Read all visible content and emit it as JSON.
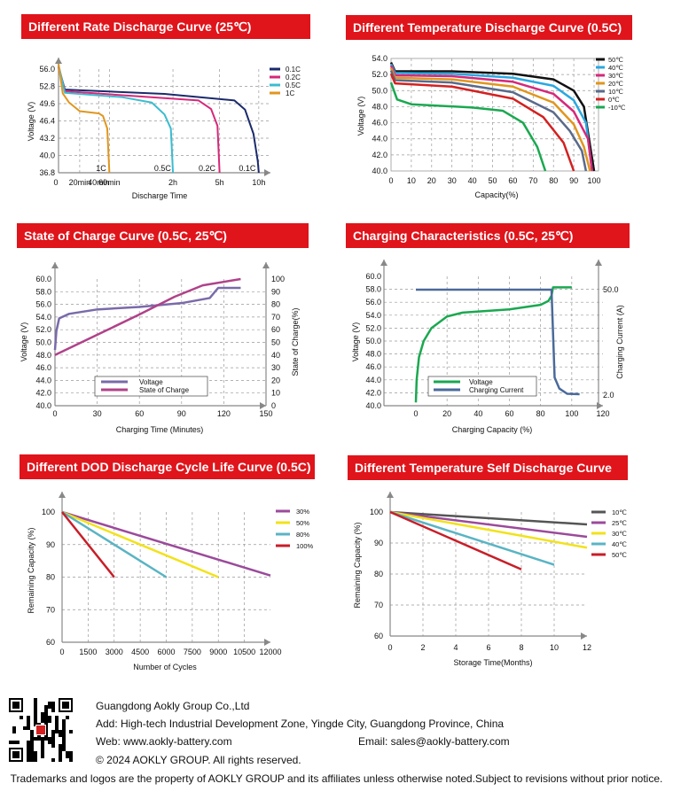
{
  "titles": {
    "c1": "Different Rate Discharge Curve (25℃)",
    "c2": "Different Temperature Discharge Curve (0.5C)",
    "c3": "State of Charge Curve (0.5C, 25℃)",
    "c4": "Charging Characteristics (0.5C, 25℃)",
    "c5": "Different DOD Discharge Cycle Life Curve (0.5C)",
    "c6": "Different Temperature Self Discharge Curve"
  },
  "chart_data": [
    {
      "id": "rate",
      "type": "line",
      "ylabel": "Voltage (V)",
      "xlabel": "Discharge Time",
      "yticks": [
        "56.0",
        "52.8",
        "49.6",
        "46.4",
        "43.2",
        "40.0",
        "36.8"
      ],
      "xticks": [
        "0",
        "20min",
        "40min",
        "60min",
        "2h",
        "5h",
        "10h"
      ],
      "legend": [
        "0.1C",
        "0.2C",
        "0.5C",
        "1C"
      ],
      "curve_labels": [
        "1C",
        "0.5C",
        "0.2C",
        "0.1C"
      ],
      "colors": [
        "#1a2a6c",
        "#d6287a",
        "#3bbcd0",
        "#e0961e"
      ],
      "series": [
        {
          "name": "0.1C",
          "points": [
            [
              0,
              56.4
            ],
            [
              3,
              52.2
            ],
            [
              50,
              51.4
            ],
            [
              83,
              50.2
            ],
            [
              88,
              48.5
            ],
            [
              92,
              44
            ],
            [
              94,
              39
            ],
            [
              94.5,
              36.8
            ]
          ]
        },
        {
          "name": "0.2C",
          "points": [
            [
              0,
              56.6
            ],
            [
              3,
              51.9
            ],
            [
              40,
              50.9
            ],
            [
              66,
              50.2
            ],
            [
              72,
              48.6
            ],
            [
              75,
              45.5
            ],
            [
              76,
              36.8
            ]
          ]
        },
        {
          "name": "0.5C",
          "points": [
            [
              0,
              56.8
            ],
            [
              3,
              51.6
            ],
            [
              30,
              50.8
            ],
            [
              44,
              49.8
            ],
            [
              50,
              47.6
            ],
            [
              53,
              45
            ],
            [
              54,
              36.8
            ]
          ]
        },
        {
          "name": "1C",
          "points": [
            [
              0,
              57
            ],
            [
              2,
              51.5
            ],
            [
              5,
              49.8
            ],
            [
              10,
              48.2
            ],
            [
              19,
              47.8
            ],
            [
              21,
              47.3
            ],
            [
              23,
              45
            ],
            [
              24,
              36.8
            ]
          ]
        }
      ]
    },
    {
      "id": "temp",
      "type": "line",
      "ylabel": "Voltage (V)",
      "xlabel": "Capacity(%)",
      "yticks": [
        "54.0",
        "52.0",
        "50.0",
        "48.0",
        "46.0",
        "44.0",
        "42.0",
        "40.0"
      ],
      "xticks": [
        "0",
        "10",
        "20",
        "30",
        "40",
        "50",
        "60",
        "70",
        "80",
        "90",
        "100"
      ],
      "legend": [
        "50℃",
        "40℃",
        "30℃",
        "20℃",
        "10℃",
        "0℃",
        "-10℃"
      ],
      "colors": [
        "#111111",
        "#2aa8e0",
        "#d6287a",
        "#e0961e",
        "#5a6a8a",
        "#d42020",
        "#1aa850"
      ],
      "series": [
        {
          "name": "50℃",
          "points": [
            [
              0,
              53.5
            ],
            [
              2,
              52.4
            ],
            [
              30,
              52.4
            ],
            [
              60,
              52.1
            ],
            [
              80,
              51.4
            ],
            [
              90,
              50
            ],
            [
              95,
              48
            ],
            [
              100,
              40
            ]
          ]
        },
        {
          "name": "40℃",
          "points": [
            [
              0,
              53.3
            ],
            [
              2,
              52.2
            ],
            [
              30,
              52.1
            ],
            [
              60,
              51.6
            ],
            [
              80,
              50.6
            ],
            [
              90,
              48.8
            ],
            [
              96,
              46
            ],
            [
              99,
              40
            ]
          ]
        },
        {
          "name": "30℃",
          "points": [
            [
              0,
              53.1
            ],
            [
              2,
              51.9
            ],
            [
              30,
              51.8
            ],
            [
              60,
              51.1
            ],
            [
              80,
              49.6
            ],
            [
              90,
              47.4
            ],
            [
              97,
              44
            ],
            [
              99,
              40
            ]
          ]
        },
        {
          "name": "20℃",
          "points": [
            [
              0,
              52.8
            ],
            [
              2,
              51.6
            ],
            [
              30,
              51.4
            ],
            [
              60,
              50.5
            ],
            [
              80,
              48.5
            ],
            [
              90,
              45.8
            ],
            [
              95,
              43
            ],
            [
              98,
              40
            ]
          ]
        },
        {
          "name": "10℃",
          "points": [
            [
              0,
              52.5
            ],
            [
              2,
              51.3
            ],
            [
              30,
              51
            ],
            [
              60,
              49.8
            ],
            [
              80,
              47.3
            ],
            [
              88,
              45
            ],
            [
              94,
              42.5
            ],
            [
              96,
              40
            ]
          ]
        },
        {
          "name": "0℃",
          "points": [
            [
              0,
              52.1
            ],
            [
              2,
              50.9
            ],
            [
              30,
              50.5
            ],
            [
              60,
              49
            ],
            [
              75,
              46.7
            ],
            [
              85,
              43.5
            ],
            [
              90,
              40
            ]
          ]
        },
        {
          "name": "-10℃",
          "points": [
            [
              0,
              51
            ],
            [
              3,
              48.9
            ],
            [
              10,
              48.3
            ],
            [
              40,
              47.9
            ],
            [
              55,
              47.5
            ],
            [
              65,
              46
            ],
            [
              72,
              43
            ],
            [
              76,
              40
            ]
          ]
        }
      ]
    },
    {
      "id": "soc",
      "type": "line",
      "ylabel": "Voltage (V)",
      "y2label": "State of Charge(%)",
      "xlabel": "Charging Time (Minutes)",
      "yticks": [
        "60.0",
        "58.0",
        "56.0",
        "54.0",
        "52.0",
        "50.0",
        "48.0",
        "46.0",
        "44.0",
        "42.0",
        "40.0"
      ],
      "y2ticks": [
        "100",
        "90",
        "80",
        "70",
        "60",
        "50",
        "40",
        "30",
        "20",
        "10",
        "0"
      ],
      "xticks": [
        "0",
        "30",
        "60",
        "90",
        "120",
        "150"
      ],
      "legend": [
        "Voltage",
        "State of Charge"
      ],
      "colors": [
        "#7a6aaa",
        "#b0428a"
      ],
      "series": [
        {
          "name": "Voltage",
          "axis": "left",
          "points": [
            [
              0,
              48.8
            ],
            [
              1,
              51.8
            ],
            [
              3,
              53.8
            ],
            [
              10,
              54.5
            ],
            [
              30,
              55.2
            ],
            [
              60,
              55.6
            ],
            [
              90,
              56.2
            ],
            [
              110,
              57
            ],
            [
              116,
              58.6
            ],
            [
              132,
              58.6
            ]
          ]
        },
        {
          "name": "State of Charge",
          "axis": "right",
          "points": [
            [
              0,
              40
            ],
            [
              60,
              72
            ],
            [
              85,
              86
            ],
            [
              105,
              95
            ],
            [
              132,
              100
            ]
          ]
        }
      ]
    },
    {
      "id": "charge",
      "type": "line",
      "ylabel": "Voltage (V)",
      "y2label": "Charging Current (A)",
      "xlabel": "Charging Capacity (%)",
      "yticks": [
        "60.0",
        "58.0",
        "56.0",
        "54.0",
        "52.0",
        "50.0",
        "48.0",
        "46.0",
        "44.0",
        "42.0",
        "40.0"
      ],
      "y2ticks": [
        "50.0",
        "2.0"
      ],
      "xticks": [
        "0",
        "20",
        "40",
        "60",
        "80",
        "100",
        "120"
      ],
      "legend": [
        "Voltage",
        "Charging Current"
      ],
      "colors": [
        "#1aa850",
        "#4a6a9a"
      ],
      "series": [
        {
          "name": "Voltage",
          "axis": "left",
          "points": [
            [
              0,
              40.5
            ],
            [
              0.5,
              44
            ],
            [
              2,
              47.5
            ],
            [
              5,
              50
            ],
            [
              10,
              52
            ],
            [
              20,
              53.8
            ],
            [
              30,
              54.4
            ],
            [
              60,
              54.9
            ],
            [
              80,
              55.6
            ],
            [
              85,
              56.2
            ],
            [
              87,
              57
            ],
            [
              88,
              58.3
            ],
            [
              100,
              58.3
            ]
          ]
        },
        {
          "name": "Charging Current",
          "axis": "right",
          "points": [
            [
              0,
              50
            ],
            [
              87,
              50
            ],
            [
              88,
              30
            ],
            [
              89,
              10
            ],
            [
              92,
              5
            ],
            [
              97,
              2.6
            ],
            [
              105,
              2.4
            ]
          ]
        }
      ]
    },
    {
      "id": "dod",
      "type": "line",
      "ylabel": "Remaining Capacity (%)",
      "xlabel": "Number of Cycles",
      "yticks": [
        "100",
        "90",
        "80",
        "70",
        "60"
      ],
      "xticks": [
        "0",
        "1500",
        "3000",
        "4500",
        "6000",
        "7500",
        "9000",
        "10500",
        "12000"
      ],
      "legend": [
        "30%",
        "50%",
        "80%",
        "100%"
      ],
      "colors": [
        "#9b4a9b",
        "#f2e21a",
        "#5ab4c4",
        "#c81e28"
      ],
      "series": [
        {
          "name": "30%",
          "points": [
            [
              0,
              100
            ],
            [
              12000,
              80.5
            ]
          ]
        },
        {
          "name": "50%",
          "points": [
            [
              0,
              100
            ],
            [
              9000,
              80
            ]
          ]
        },
        {
          "name": "80%",
          "points": [
            [
              0,
              100
            ],
            [
              6000,
              80
            ]
          ]
        },
        {
          "name": "100%",
          "points": [
            [
              0,
              100
            ],
            [
              3000,
              80
            ]
          ]
        }
      ]
    },
    {
      "id": "self",
      "type": "line",
      "ylabel": "Remaining Capacity (%)",
      "xlabel": "Storage Time(Months)",
      "yticks": [
        "100",
        "90",
        "80",
        "70",
        "60"
      ],
      "xticks": [
        "0",
        "2",
        "4",
        "6",
        "8",
        "10",
        "12"
      ],
      "legend": [
        "10℃",
        "25℃",
        "30℃",
        "40℃",
        "50℃"
      ],
      "colors": [
        "#555555",
        "#9b4a9b",
        "#f2e21a",
        "#5ab4c4",
        "#c81e28"
      ],
      "series": [
        {
          "name": "10℃",
          "points": [
            [
              0,
              100
            ],
            [
              12,
              96
            ]
          ]
        },
        {
          "name": "25℃",
          "points": [
            [
              0,
              100
            ],
            [
              12,
              92
            ]
          ]
        },
        {
          "name": "30℃",
          "points": [
            [
              0,
              100
            ],
            [
              12,
              88.5
            ]
          ]
        },
        {
          "name": "40℃",
          "points": [
            [
              0,
              100
            ],
            [
              10,
              83
            ]
          ]
        },
        {
          "name": "50℃",
          "points": [
            [
              0,
              100
            ],
            [
              8,
              81.5
            ]
          ]
        }
      ]
    }
  ],
  "footer": {
    "company": "Guangdong Aokly Group Co.,Ltd",
    "address": "Add: High-tech Industrial Development Zone,  Yingde City, Guangdong Province, China",
    "web": "Web: www.aokly-battery.com",
    "email": "Email: sales@aokly-battery.com",
    "copyright": "© 2024 AOKLY GROUP. All rights reserved.",
    "trademark": "Trademarks and logos are the property of AOKLY GROUP and its affiliates unless otherwise noted.Subject to revisions without prior notice."
  }
}
